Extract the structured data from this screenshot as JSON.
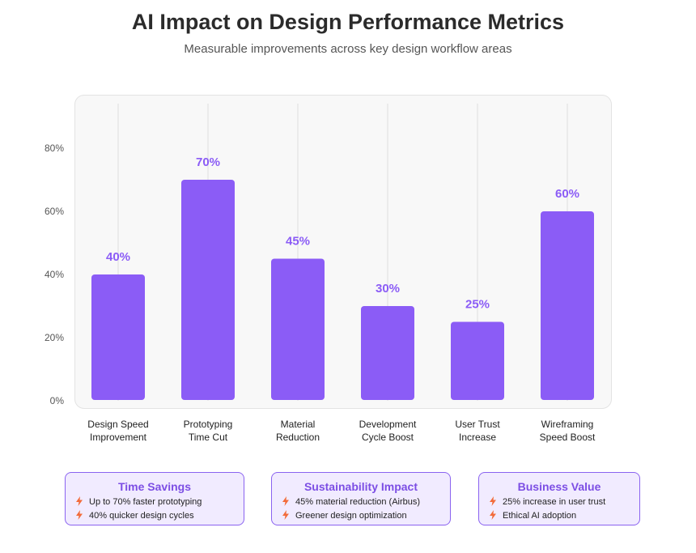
{
  "header": {
    "title": "AI Impact on Design Performance Metrics",
    "subtitle": "Measurable improvements across key design workflow areas"
  },
  "chart_data": {
    "type": "bar",
    "categories": [
      [
        "Design Speed",
        "Improvement"
      ],
      [
        "Prototyping",
        "Time Cut"
      ],
      [
        "Material",
        "Reduction"
      ],
      [
        "Development",
        "Cycle Boost"
      ],
      [
        "User Trust",
        "Increase"
      ],
      [
        "Wireframing",
        "Speed Boost"
      ]
    ],
    "values": [
      40,
      70,
      45,
      30,
      25,
      60
    ],
    "value_labels": [
      "40%",
      "70%",
      "45%",
      "30%",
      "25%",
      "60%"
    ],
    "yticks": [
      0,
      20,
      40,
      60,
      80
    ],
    "ytick_labels": [
      "0%",
      "20%",
      "40%",
      "60%",
      "80%"
    ],
    "ylim": [
      0,
      95
    ],
    "bar_color": "#8b5cf6",
    "label_color": "#8b5cf6",
    "grid": "vertical"
  },
  "cards": [
    {
      "title": "Time Savings",
      "items": [
        "Up to 70% faster prototyping",
        "40% quicker design cycles"
      ]
    },
    {
      "title": "Sustainability Impact",
      "items": [
        "45% material reduction (Airbus)",
        "Greener design optimization"
      ]
    },
    {
      "title": "Business Value",
      "items": [
        "25% increase in user trust",
        "Ethical AI adoption"
      ]
    }
  ],
  "colors": {
    "accent": "#8b5cf6",
    "bolt": "#f26b3a",
    "card_bg": "#f1ebff"
  },
  "icons": {
    "card_bullet": "lightning-bolt-icon"
  }
}
